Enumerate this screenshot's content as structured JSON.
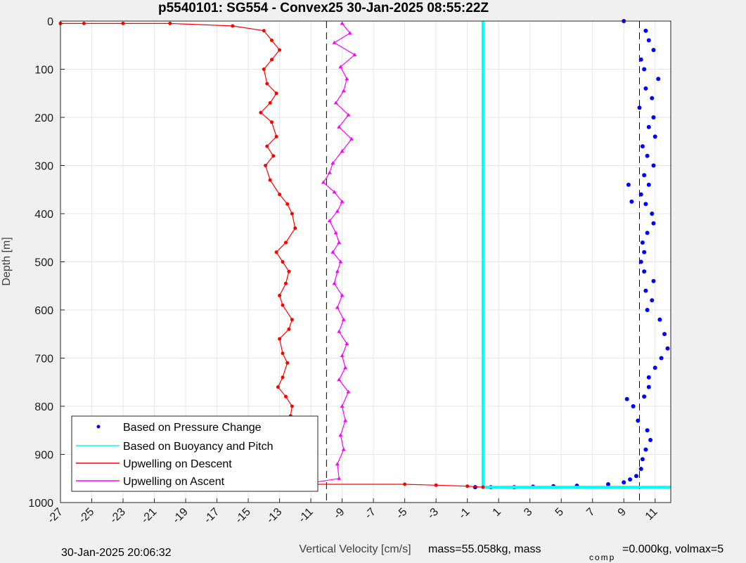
{
  "chart_data": {
    "type": "scatter",
    "title": "p5540101: SG554 - Convex25 30-Jan-2025 08:55:22Z",
    "xlabel": "Vertical Velocity [cm/s]",
    "ylabel": "Depth [m]",
    "xlim": [
      -27,
      12
    ],
    "ylim": [
      0,
      1000
    ],
    "y_reversed": true,
    "grid": true,
    "x_ticks": [
      -27,
      -25,
      -23,
      -21,
      -19,
      -17,
      -15,
      -13,
      -11,
      -9,
      -7,
      -5,
      -3,
      -1,
      1,
      3,
      5,
      7,
      9,
      11
    ],
    "y_ticks": [
      0,
      100,
      200,
      300,
      400,
      500,
      600,
      700,
      800,
      900,
      1000
    ],
    "reference_lines_x": [
      -10,
      10
    ],
    "legend": {
      "position": "bottom-left",
      "entries": [
        "Based on Pressure Change",
        "Based on Buoyancy and Pitch",
        "Upwelling on Descent",
        "Upwelling on Ascent"
      ]
    },
    "series": [
      {
        "name": "Based on Pressure Change",
        "color": "#0000ff",
        "marker": "dot",
        "x": [
          9,
          10.4,
          10.6,
          10.9,
          10.1,
          10.3,
          11.2,
          10.4,
          10.8,
          10.0,
          10.9,
          10.6,
          11.0,
          10.2,
          10.5,
          10.9,
          10.3,
          10.6,
          10.1,
          10.4,
          10.8,
          10.9,
          10.5,
          9.3,
          10.2,
          9.5,
          10.3,
          10.1,
          10.3,
          10.9,
          10.4,
          10.8,
          10.5,
          11.3,
          11.6,
          11.8,
          11.4,
          11.0,
          10.6,
          10.6,
          10.3,
          9.2,
          9.6,
          9.9,
          10.5,
          10.7,
          10.4,
          10.2,
          10.1,
          9.8,
          9.4,
          9.0,
          8.0,
          6.0,
          4.5,
          3.2,
          2.0,
          0.5,
          -0.5
        ],
        "y": [
          0,
          20,
          40,
          60,
          80,
          100,
          120,
          140,
          160,
          180,
          200,
          220,
          240,
          260,
          280,
          300,
          320,
          340,
          360,
          380,
          400,
          420,
          440,
          340,
          460,
          375,
          480,
          500,
          520,
          540,
          560,
          580,
          600,
          620,
          650,
          680,
          700,
          720,
          740,
          760,
          780,
          785,
          800,
          830,
          850,
          870,
          890,
          910,
          930,
          945,
          952,
          958,
          962,
          965,
          966,
          967,
          968,
          968,
          968
        ]
      },
      {
        "name": "Based on Buoyancy and Pitch",
        "color": "#00ffff",
        "x": [
          0,
          0,
          0.1,
          12
        ],
        "y": [
          0,
          968,
          968,
          968
        ]
      },
      {
        "name": "Upwelling on Descent",
        "color": "#ff0000",
        "x": [
          -27,
          -25.5,
          -23,
          -20,
          -16,
          -14,
          -13.5,
          -13,
          -13.5,
          -14,
          -13.8,
          -13.2,
          -13.6,
          -14.2,
          -13.5,
          -13.2,
          -13.8,
          -13.4,
          -13.9,
          -13.6,
          -13.0,
          -12.5,
          -12.2,
          -12.0,
          -12.6,
          -13.2,
          -12.8,
          -12.4,
          -12.6,
          -13.0,
          -12.8,
          -12.2,
          -12.4,
          -13.0,
          -12.8,
          -12.5,
          -12.8,
          -13.1,
          -12.6,
          -12.2,
          -12.3,
          -11.8,
          -12.1,
          -12.0,
          -12.2,
          -12.0,
          -5,
          -3,
          -1,
          0
        ],
        "y": [
          5,
          5,
          5,
          5,
          10,
          20,
          40,
          60,
          80,
          100,
          130,
          150,
          170,
          190,
          210,
          240,
          260,
          280,
          300,
          330,
          360,
          380,
          400,
          430,
          460,
          480,
          500,
          520,
          545,
          570,
          590,
          620,
          640,
          660,
          690,
          710,
          740,
          760,
          780,
          800,
          820,
          840,
          870,
          900,
          930,
          962,
          962,
          964,
          966,
          968
        ]
      },
      {
        "name": "Upwelling on Ascent",
        "color": "#ff00ff",
        "x": [
          -9,
          -8.5,
          -9.5,
          -8.2,
          -9.1,
          -8.7,
          -8.9,
          -9.4,
          -8.6,
          -9.2,
          -8.4,
          -9.0,
          -9.6,
          -9.8,
          -10.2,
          -9.5,
          -9.0,
          -9.3,
          -9.8,
          -9.4,
          -9.2,
          -9.6,
          -9.1,
          -9.3,
          -9.5,
          -9.0,
          -9.3,
          -8.9,
          -9.2,
          -8.7,
          -9.0,
          -8.8,
          -9.2,
          -8.6,
          -9.0,
          -8.8,
          -9.1,
          -8.9,
          -9.3,
          -9.2,
          -12.3
        ],
        "y": [
          5,
          25,
          45,
          70,
          95,
          120,
          145,
          170,
          195,
          220,
          245,
          270,
          295,
          315,
          335,
          355,
          375,
          395,
          415,
          440,
          460,
          480,
          500,
          520,
          545,
          570,
          595,
          620,
          645,
          670,
          695,
          720,
          745,
          770,
          800,
          830,
          860,
          890,
          920,
          950,
          966
        ]
      }
    ]
  },
  "footer": {
    "timestamp": "30-Jan-2025 20:06:32",
    "stats_text": "mass=55.058kg, mass",
    "stats_subscript": "comp",
    "stats_text_2": "=0.000kg, volmax=5"
  }
}
